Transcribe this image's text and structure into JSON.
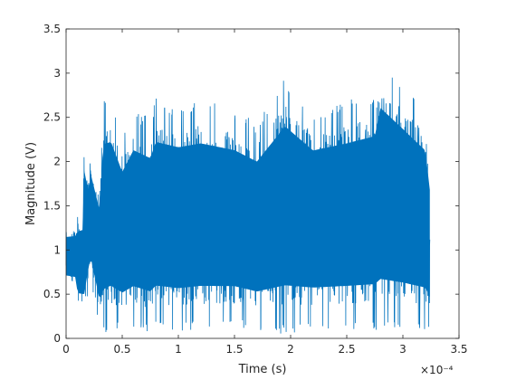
{
  "chart_data": {
    "type": "line",
    "xlabel": "Time (s)",
    "ylabel": "Magnitude (V)",
    "x_exponent_label": "×10⁻⁴",
    "x_scale_factor": 0.0001,
    "xlim": [
      0,
      3.5
    ],
    "ylim": [
      0,
      3.5
    ],
    "xticks": [
      "0",
      "0.5",
      "1",
      "1.5",
      "2",
      "2.5",
      "3",
      "3.5"
    ],
    "yticks": [
      "0",
      "0.5",
      "1",
      "1.5",
      "2",
      "2.5",
      "3",
      "3.5"
    ],
    "grid": false,
    "series": [
      {
        "color": "#0072BD",
        "envelope": {
          "x": [
            0,
            0.09,
            0.1,
            0.15,
            0.16,
            0.2,
            0.22,
            0.3,
            0.33,
            0.4,
            0.5,
            0.6,
            0.75,
            0.8,
            1.0,
            1.2,
            1.5,
            1.7,
            1.95,
            2.2,
            2.5,
            2.75,
            2.8,
            3.0,
            3.2,
            3.24
          ],
          "upper": [
            1.28,
            1.3,
            1.42,
            1.45,
            2.35,
            1.9,
            2.15,
            1.75,
            2.7,
            2.72,
            2.3,
            2.6,
            2.5,
            2.72,
            2.65,
            2.7,
            2.6,
            2.45,
            2.95,
            2.6,
            2.7,
            2.8,
            3.2,
            2.9,
            2.6,
            2.05
          ],
          "lower": [
            0.58,
            0.55,
            0.3,
            0.28,
            0.05,
            0.55,
            0.62,
            0.12,
            0.05,
            0.1,
            0.1,
            0.12,
            0.07,
            0.1,
            0.08,
            0.1,
            0.12,
            0.08,
            0.05,
            0.1,
            0.1,
            0.1,
            0.08,
            0.1,
            0.1,
            0.1
          ]
        }
      }
    ]
  }
}
